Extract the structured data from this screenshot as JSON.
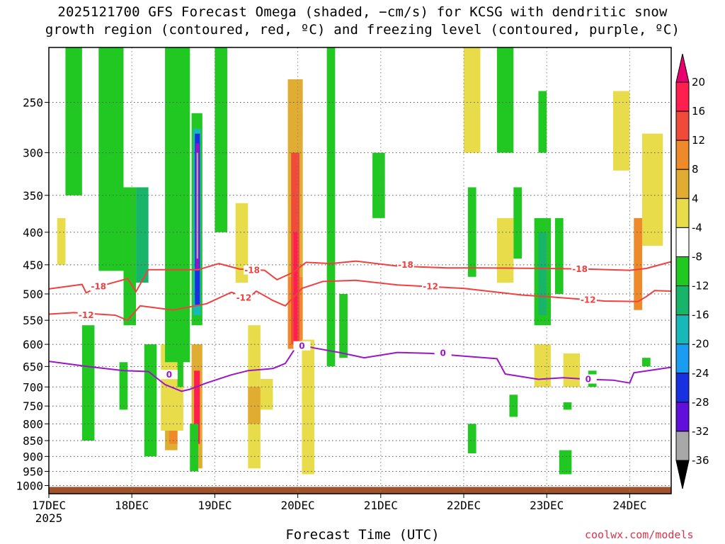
{
  "title_line1": "2025121700 GFS Forecast Omega (shaded, −cm/s) for KCSG with dendritic snow",
  "title_line2": "growth region (contoured, red, ºC) and freezing level (contoured, purple, ºC)",
  "xlabel": "Forecast Time (UTC)",
  "credit": "coolwx.com/models",
  "colors": {
    "minus18": "#f04040",
    "minus12": "#f04040",
    "freezing": "#9a16c8",
    "ground": "#a0522d",
    "cb_top_arrow": "#e8006e",
    "cb_bottom_arrow": "#000000"
  },
  "chart_data": {
    "type": "heatmap",
    "title": "2025121700 GFS Forecast Omega (shaded, −cm/s) for KCSG with dendritic snow growth region (contoured, red, ºC) and freezing level (contoured, purple, ºC)",
    "xlabel": "Forecast Time (UTC)",
    "ylabel": "",
    "x_ticks": [
      "17DEC",
      "18DEC",
      "19DEC",
      "20DEC",
      "21DEC",
      "22DEC",
      "23DEC",
      "24DEC"
    ],
    "x_year": "2025",
    "y_ticks": [
      250,
      300,
      350,
      400,
      450,
      500,
      550,
      600,
      650,
      700,
      750,
      800,
      850,
      900,
      950,
      1000
    ],
    "xlim_days": [
      0,
      7.5
    ],
    "ylim_hpa": [
      1030,
      205
    ],
    "grid": true,
    "colorbar": {
      "labels": [
        20,
        16,
        12,
        8,
        4,
        -4,
        -8,
        -12,
        -16,
        -20,
        -24,
        -28,
        -32,
        -36
      ],
      "colors": [
        "#ff1f4e",
        "#f04a3a",
        "#ee8a2a",
        "#e0ac32",
        "#e8dc4a",
        "#ffffff",
        "#22c822",
        "#18b46a",
        "#16b8b8",
        "#1a9cf0",
        "#1830e0",
        "#6010d8",
        "#a010c8",
        "#a8a8a8"
      ],
      "extend": "both"
    },
    "contours": [
      {
        "label": "-18",
        "points": [
          [
            0.0,
            491
          ],
          [
            0.4,
            483
          ],
          [
            0.45,
            498
          ],
          [
            0.6,
            487
          ],
          [
            0.95,
            473
          ],
          [
            1.05,
            496
          ],
          [
            1.2,
            458
          ],
          [
            1.8,
            458
          ],
          [
            2.05,
            448
          ],
          [
            2.3,
            457
          ],
          [
            2.6,
            459
          ],
          [
            2.75,
            475
          ],
          [
            2.95,
            462
          ],
          [
            3.1,
            446
          ],
          [
            3.4,
            448
          ],
          [
            3.7,
            444
          ],
          [
            4.2,
            452
          ],
          [
            4.8,
            455
          ],
          [
            5.2,
            455
          ],
          [
            6.0,
            456
          ],
          [
            6.5,
            457
          ],
          [
            7.0,
            459
          ],
          [
            7.2,
            456
          ],
          [
            7.5,
            445
          ]
        ]
      },
      {
        "label": "-12",
        "points": [
          [
            0.0,
            538
          ],
          [
            0.3,
            535
          ],
          [
            0.8,
            540
          ],
          [
            0.95,
            550
          ],
          [
            1.1,
            522
          ],
          [
            1.5,
            530
          ],
          [
            1.9,
            518
          ],
          [
            2.2,
            497
          ],
          [
            2.4,
            508
          ],
          [
            2.5,
            495
          ],
          [
            2.7,
            512
          ],
          [
            2.85,
            522
          ],
          [
            3.05,
            490
          ],
          [
            3.3,
            478
          ],
          [
            3.7,
            476
          ],
          [
            4.2,
            484
          ],
          [
            5.0,
            490
          ],
          [
            5.7,
            502
          ],
          [
            6.0,
            505
          ],
          [
            6.7,
            513
          ],
          [
            7.1,
            514
          ],
          [
            7.2,
            505
          ],
          [
            7.3,
            494
          ],
          [
            7.5,
            495
          ]
        ]
      },
      {
        "label": "0",
        "points": [
          [
            0.0,
            638
          ],
          [
            0.5,
            651
          ],
          [
            0.9,
            660
          ],
          [
            1.2,
            662
          ],
          [
            1.4,
            694
          ],
          [
            1.6,
            711
          ],
          [
            1.7,
            706
          ],
          [
            1.9,
            690
          ],
          [
            2.2,
            670
          ],
          [
            2.4,
            660
          ],
          [
            2.7,
            655
          ],
          [
            2.85,
            643
          ],
          [
            3.0,
            600
          ],
          [
            3.2,
            608
          ],
          [
            3.5,
            618
          ],
          [
            3.8,
            630
          ],
          [
            4.2,
            618
          ],
          [
            4.6,
            620
          ],
          [
            5.0,
            626
          ],
          [
            5.4,
            632
          ],
          [
            5.5,
            668
          ],
          [
            5.9,
            681
          ],
          [
            6.2,
            677
          ],
          [
            6.5,
            681
          ],
          [
            6.8,
            683
          ],
          [
            7.0,
            690
          ],
          [
            7.05,
            665
          ],
          [
            7.5,
            652
          ]
        ]
      }
    ],
    "contour_labels": [
      {
        "text": "-18",
        "x": 0.6,
        "y": 487
      },
      {
        "text": "-18",
        "x": 2.45,
        "y": 459
      },
      {
        "text": "-18",
        "x": 4.3,
        "y": 450
      },
      {
        "text": "-18",
        "x": 6.4,
        "y": 457
      },
      {
        "text": "-12",
        "x": 0.45,
        "y": 540
      },
      {
        "text": "-12",
        "x": 2.35,
        "y": 507
      },
      {
        "text": "-12",
        "x": 4.6,
        "y": 487
      },
      {
        "text": "-12",
        "x": 6.5,
        "y": 511
      },
      {
        "text": "0",
        "x": 1.45,
        "y": 670
      },
      {
        "text": "0",
        "x": 3.05,
        "y": 604
      },
      {
        "text": "0",
        "x": 4.75,
        "y": 619
      },
      {
        "text": "0",
        "x": 6.5,
        "y": 681
      }
    ],
    "shaded_regions": [
      {
        "x": [
          2.88,
          3.06
        ],
        "p": [
          230,
          470
        ],
        "level": 8
      },
      {
        "x": [
          2.88,
          3.06
        ],
        "p": [
          470,
          610
        ],
        "level": 12
      },
      {
        "x": [
          2.92,
          3.02
        ],
        "p": [
          300,
          600
        ],
        "level": 16
      },
      {
        "x": [
          2.95,
          3.0
        ],
        "p": [
          400,
          600
        ],
        "level": 20
      },
      {
        "x": [
          3.05,
          3.2
        ],
        "p": [
          590,
          960
        ],
        "level": 4
      },
      {
        "x": [
          2.4,
          2.55
        ],
        "p": [
          560,
          940
        ],
        "level": 4
      },
      {
        "x": [
          2.55,
          2.7
        ],
        "p": [
          680,
          760
        ],
        "level": 4
      },
      {
        "x": [
          2.25,
          2.4
        ],
        "p": [
          360,
          480
        ],
        "level": 4
      },
      {
        "x": [
          2.4,
          2.55
        ],
        "p": [
          700,
          800
        ],
        "level": 8
      },
      {
        "x": [
          1.4,
          1.55
        ],
        "p": [
          680,
          880
        ],
        "level": 8
      },
      {
        "x": [
          1.45,
          1.55
        ],
        "p": [
          720,
          860
        ],
        "level": 12
      },
      {
        "x": [
          1.35,
          1.62
        ],
        "p": [
          600,
          820
        ],
        "level": 4
      },
      {
        "x": [
          1.72,
          1.85
        ],
        "p": [
          600,
          940
        ],
        "level": 8
      },
      {
        "x": [
          1.75,
          1.82
        ],
        "p": [
          660,
          860
        ],
        "level": 20
      },
      {
        "x": [
          1.7,
          1.8
        ],
        "p": [
          800,
          950
        ],
        "level": -8
      },
      {
        "x": [
          1.55,
          1.62
        ],
        "p": [
          620,
          700
        ],
        "level": -8
      },
      {
        "x": [
          1.72,
          1.85
        ],
        "p": [
          260,
          560
        ],
        "level": -8
      },
      {
        "x": [
          1.74,
          1.83
        ],
        "p": [
          275,
          540
        ],
        "level": -16
      },
      {
        "x": [
          1.76,
          1.82
        ],
        "p": [
          280,
          520
        ],
        "level": -24
      },
      {
        "x": [
          1.77,
          1.81
        ],
        "p": [
          290,
          460
        ],
        "level": -32
      },
      {
        "x": [
          1.78,
          1.8
        ],
        "p": [
          300,
          440
        ],
        "level": -36
      },
      {
        "x": [
          1.4,
          1.7
        ],
        "p": [
          200,
          640
        ],
        "level": -8
      },
      {
        "x": [
          0.6,
          0.9
        ],
        "p": [
          200,
          460
        ],
        "level": -8
      },
      {
        "x": [
          0.9,
          1.05
        ],
        "p": [
          340,
          560
        ],
        "level": -8
      },
      {
        "x": [
          1.05,
          1.2
        ],
        "p": [
          340,
          480
        ],
        "level": -12
      },
      {
        "x": [
          0.4,
          0.55
        ],
        "p": [
          560,
          850
        ],
        "level": -8
      },
      {
        "x": [
          0.85,
          0.95
        ],
        "p": [
          640,
          760
        ],
        "level": -8
      },
      {
        "x": [
          1.15,
          1.3
        ],
        "p": [
          600,
          900
        ],
        "level": -8
      },
      {
        "x": [
          0.1,
          0.2
        ],
        "p": [
          380,
          450
        ],
        "level": 4
      },
      {
        "x": [
          0.2,
          0.4
        ],
        "p": [
          200,
          350
        ],
        "level": -8
      },
      {
        "x": [
          2.0,
          2.15
        ],
        "p": [
          200,
          400
        ],
        "level": -8
      },
      {
        "x": [
          3.35,
          3.45
        ],
        "p": [
          200,
          650
        ],
        "level": -8
      },
      {
        "x": [
          3.5,
          3.6
        ],
        "p": [
          500,
          630
        ],
        "level": -8
      },
      {
        "x": [
          3.9,
          4.05
        ],
        "p": [
          300,
          380
        ],
        "level": -8
      },
      {
        "x": [
          5.0,
          5.2
        ],
        "p": [
          200,
          300
        ],
        "level": 4
      },
      {
        "x": [
          5.4,
          5.6
        ],
        "p": [
          200,
          300
        ],
        "level": -8
      },
      {
        "x": [
          5.4,
          5.6
        ],
        "p": [
          380,
          480
        ],
        "level": 4
      },
      {
        "x": [
          5.05,
          5.15
        ],
        "p": [
          340,
          470
        ],
        "level": -8
      },
      {
        "x": [
          5.85,
          6.05
        ],
        "p": [
          380,
          560
        ],
        "level": -8
      },
      {
        "x": [
          5.9,
          6.0
        ],
        "p": [
          400,
          540
        ],
        "level": -12
      },
      {
        "x": [
          6.1,
          6.2
        ],
        "p": [
          380,
          500
        ],
        "level": -8
      },
      {
        "x": [
          5.6,
          5.7
        ],
        "p": [
          340,
          440
        ],
        "level": -8
      },
      {
        "x": [
          5.9,
          6.0
        ],
        "p": [
          240,
          300
        ],
        "level": -8
      },
      {
        "x": [
          5.85,
          6.05
        ],
        "p": [
          600,
          700
        ],
        "level": 4
      },
      {
        "x": [
          6.2,
          6.4
        ],
        "p": [
          620,
          700
        ],
        "level": 4
      },
      {
        "x": [
          6.8,
          7.0
        ],
        "p": [
          240,
          320
        ],
        "level": 4
      },
      {
        "x": [
          7.15,
          7.4
        ],
        "p": [
          280,
          420
        ],
        "level": 4
      },
      {
        "x": [
          7.05,
          7.15
        ],
        "p": [
          380,
          530
        ],
        "level": 12
      },
      {
        "x": [
          5.05,
          5.15
        ],
        "p": [
          800,
          890
        ],
        "level": -8
      },
      {
        "x": [
          6.2,
          6.3
        ],
        "p": [
          740,
          760
        ],
        "level": -8
      },
      {
        "x": [
          5.55,
          5.65
        ],
        "p": [
          720,
          780
        ],
        "level": -8
      },
      {
        "x": [
          6.15,
          6.3
        ],
        "p": [
          880,
          960
        ],
        "level": -8
      },
      {
        "x": [
          6.5,
          6.6
        ],
        "p": [
          660,
          700
        ],
        "level": -8
      },
      {
        "x": [
          7.15,
          7.25
        ],
        "p": [
          630,
          650
        ],
        "level": -8
      }
    ],
    "ground": {
      "p": [
        1005,
        1030
      ],
      "label": ""
    }
  }
}
